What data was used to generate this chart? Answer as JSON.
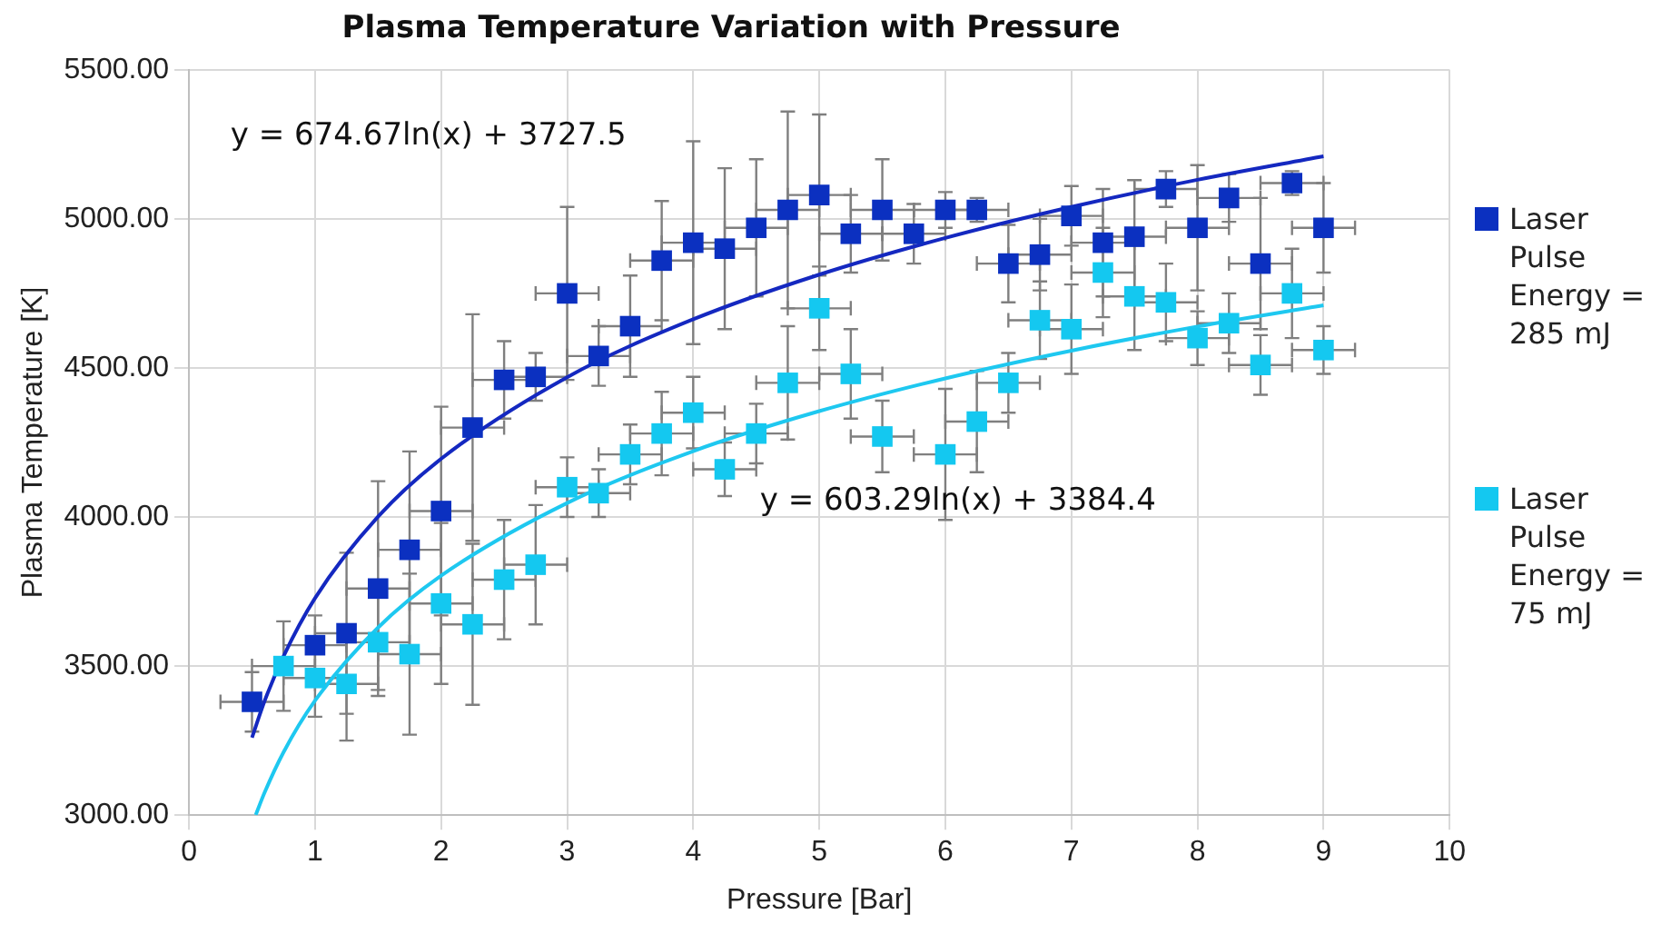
{
  "chart_data": {
    "type": "scatter",
    "title": "Plasma Temperature Variation with Pressure",
    "xlabel": "Pressure [Bar]",
    "ylabel": "Plasma Temperature [K]",
    "xlim": [
      0,
      10
    ],
    "xticks": [
      0,
      1,
      2,
      3,
      4,
      5,
      6,
      7,
      8,
      9,
      10
    ],
    "ylim": [
      3000,
      5500
    ],
    "yticks": [
      {
        "value": 3000,
        "label": "3000.00"
      },
      {
        "value": 3500,
        "label": "3500.00"
      },
      {
        "value": 4000,
        "label": "4000.00"
      },
      {
        "value": 4500,
        "label": "4500.00"
      },
      {
        "value": 5000,
        "label": "5000.00"
      },
      {
        "value": 5500,
        "label": "5500.00"
      }
    ],
    "grid": true,
    "legend": "right",
    "annotations": [
      "y = 674.67ln(x) + 3727.5",
      "y = 603.29ln(x) + 3384.4"
    ],
    "series": [
      {
        "name": "Laser Pulse Energy = 285 mJ",
        "color": "#0b30c0",
        "marker": "square",
        "x": [
          0.5,
          1,
          1.25,
          1.5,
          1.75,
          2,
          2.25,
          2.5,
          2.75,
          3,
          3.25,
          3.5,
          3.75,
          4,
          4.25,
          4.5,
          4.75,
          5,
          5.25,
          5.5,
          5.75,
          6,
          6.25,
          6.5,
          6.75,
          7,
          7.25,
          7.5,
          7.75,
          8,
          8.25,
          8.5,
          8.75,
          9
        ],
        "values": [
          3380,
          3570,
          3610,
          3760,
          3890,
          4020,
          4300,
          4460,
          4470,
          4750,
          4540,
          4640,
          4860,
          4920,
          4900,
          4970,
          5030,
          5080,
          4950,
          5030,
          4950,
          5030,
          5030,
          4850,
          4880,
          5010,
          4920,
          4940,
          5100,
          4970,
          5070,
          4850,
          5120,
          4970
        ],
        "errors": [
          100,
          100,
          270,
          360,
          330,
          350,
          380,
          130,
          80,
          290,
          100,
          170,
          200,
          340,
          270,
          230,
          330,
          270,
          130,
          170,
          100,
          60,
          40,
          130,
          120,
          100,
          180,
          190,
          60,
          210,
          80,
          220,
          40,
          150
        ],
        "xerrors": [
          0.25,
          0.25,
          0.25,
          0.25,
          0.25,
          0.25,
          0.25,
          0.25,
          0.25,
          0.25,
          0.25,
          0.25,
          0.25,
          0.25,
          0.25,
          0.25,
          0.25,
          0.25,
          0.25,
          0.25,
          0.25,
          0.25,
          0.25,
          0.25,
          0.25,
          0.25,
          0.25,
          0.25,
          0.25,
          0.25,
          0.25,
          0.25,
          0.25,
          0.25
        ]
      },
      {
        "name": "Laser Pulse Energy = 75 mJ",
        "color": "#14c8f0",
        "marker": "square",
        "x": [
          0.75,
          1,
          1.25,
          1.5,
          1.75,
          2,
          2.25,
          2.5,
          2.75,
          3,
          3.25,
          3.5,
          3.75,
          4,
          4.25,
          4.5,
          4.75,
          5,
          5.25,
          5.5,
          6,
          6.25,
          6.5,
          6.75,
          7,
          7.25,
          7.5,
          7.75,
          8,
          8.25,
          8.5,
          8.75,
          9
        ],
        "values": [
          3500,
          3460,
          3440,
          3580,
          3540,
          3710,
          3640,
          3790,
          3840,
          4100,
          4080,
          4210,
          4280,
          4350,
          4160,
          4280,
          4450,
          4700,
          4480,
          4270,
          4210,
          4320,
          4450,
          4660,
          4630,
          4820,
          4740,
          4720,
          4600,
          4650,
          4510,
          4750,
          4560
        ],
        "errors": [
          150,
          130,
          190,
          160,
          270,
          270,
          270,
          200,
          200,
          100,
          80,
          100,
          140,
          120,
          90,
          100,
          190,
          140,
          150,
          120,
          220,
          170,
          100,
          130,
          150,
          150,
          180,
          130,
          90,
          100,
          100,
          150,
          80
        ],
        "xerrors": [
          0.25,
          0.25,
          0.25,
          0.25,
          0.25,
          0.25,
          0.25,
          0.25,
          0.25,
          0.25,
          0.25,
          0.25,
          0.25,
          0.25,
          0.25,
          0.25,
          0.25,
          0.25,
          0.25,
          0.25,
          0.25,
          0.25,
          0.25,
          0.25,
          0.25,
          0.25,
          0.25,
          0.25,
          0.25,
          0.25,
          0.25,
          0.25,
          0.25
        ]
      },
      {
        "type": "line",
        "color": "#1428c0",
        "marker": "none",
        "x": [
          0.5,
          0.6,
          0.75,
          1,
          1.5,
          2,
          3,
          4,
          5,
          6,
          7,
          8,
          9
        ],
        "values": [
          3260,
          3383,
          3533,
          3728,
          4001,
          4195,
          4469,
          4663,
          4813,
          4936,
          5040,
          5131,
          5210
        ]
      },
      {
        "type": "line",
        "color": "#1ec8f0",
        "marker": "none",
        "x": [
          0.53,
          0.6,
          0.75,
          1,
          1.5,
          2,
          3,
          4,
          5,
          6,
          7,
          8,
          9
        ],
        "values": [
          3001,
          3076,
          3211,
          3384,
          3629,
          3803,
          4047,
          4221,
          4355,
          4465,
          4558,
          4639,
          4710
        ]
      }
    ]
  }
}
